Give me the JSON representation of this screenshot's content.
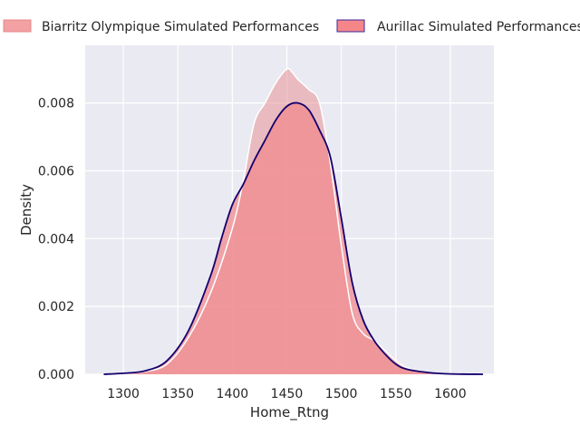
{
  "chart_data": {
    "type": "area",
    "xlabel": "Home_Rtng",
    "ylabel": "Density",
    "xlim": [
      1265,
      1640
    ],
    "ylim": [
      0,
      0.0097
    ],
    "xticks": [
      1300,
      1350,
      1400,
      1450,
      1500,
      1550,
      1600
    ],
    "yticks": [
      0.0,
      0.002,
      0.004,
      0.006,
      0.008
    ],
    "ytick_labels": [
      "0.000",
      "0.002",
      "0.004",
      "0.006",
      "0.008"
    ],
    "grid": true,
    "legend_position": "top",
    "series": [
      {
        "name": "Biarritz Olympique Simulated Performances",
        "color": "#e8898c",
        "x": [
          1282,
          1300,
          1320,
          1340,
          1360,
          1380,
          1400,
          1410,
          1420,
          1430,
          1440,
          1450,
          1455,
          1460,
          1470,
          1480,
          1490,
          1500,
          1510,
          1520,
          1530,
          1540,
          1550,
          1560,
          1580,
          1600,
          1630
        ],
        "y": [
          0.0,
          2e-05,
          8e-05,
          0.0003,
          0.0011,
          0.0024,
          0.0043,
          0.0057,
          0.0074,
          0.008,
          0.0086,
          0.009,
          0.0089,
          0.0087,
          0.0084,
          0.008,
          0.0062,
          0.0038,
          0.0018,
          0.0012,
          0.001,
          0.0007,
          0.0004,
          0.0002,
          5e-05,
          1e-05,
          0.0
        ]
      },
      {
        "name": "Aurillac Simulated Performances",
        "color": "#14006e",
        "fill_color": "#f08a8e",
        "x": [
          1282,
          1300,
          1320,
          1340,
          1360,
          1380,
          1390,
          1400,
          1410,
          1420,
          1430,
          1440,
          1450,
          1460,
          1470,
          1480,
          1490,
          1500,
          1510,
          1520,
          1530,
          1540,
          1550,
          1560,
          1580,
          1600,
          1630
        ],
        "y": [
          0.0,
          3e-05,
          0.0001,
          0.0004,
          0.0013,
          0.0029,
          0.004,
          0.005,
          0.0056,
          0.0063,
          0.0069,
          0.0075,
          0.0079,
          0.008,
          0.0078,
          0.0072,
          0.0064,
          0.0046,
          0.0027,
          0.0016,
          0.001,
          0.0006,
          0.0003,
          0.00015,
          5e-05,
          1e-05,
          0.0
        ]
      }
    ]
  }
}
